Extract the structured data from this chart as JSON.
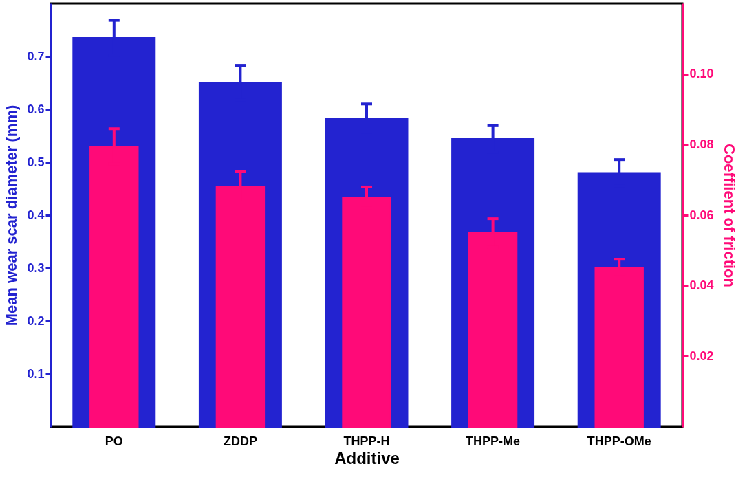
{
  "chart_data": {
    "type": "bar",
    "xlabel": "Additive",
    "ylabel": "Mean wear scar diameter (mm)",
    "y2label": "Coeffiient of friction",
    "categories": [
      "PO",
      "ZDDP",
      "THPP-H",
      "THPP-Me",
      "THPP-OMe"
    ],
    "series": [
      {
        "color": "#2323d0",
        "values": [
          0.735,
          0.65,
          0.583,
          0.544,
          0.48
        ],
        "errors": [
          0.033,
          0.033,
          0.027,
          0.025,
          0.025
        ]
      },
      {
        "color": "#ff0a78",
        "axis": "y2",
        "values": [
          0.0795,
          0.068,
          0.065,
          0.055,
          0.045
        ],
        "errors": [
          0.005,
          0.0043,
          0.003,
          0.004,
          0.0025
        ]
      }
    ],
    "ylim": [
      0,
      0.8
    ],
    "yticks": [
      0.1,
      0.2,
      0.3,
      0.4,
      0.5,
      0.6,
      0.7
    ],
    "y2lim": [
      0,
      0.12
    ],
    "y2ticks": [
      0.02,
      0.04,
      0.06,
      0.08,
      {
        "value": 0.1,
        "label": "0.10"
      }
    ],
    "grid": false
  }
}
